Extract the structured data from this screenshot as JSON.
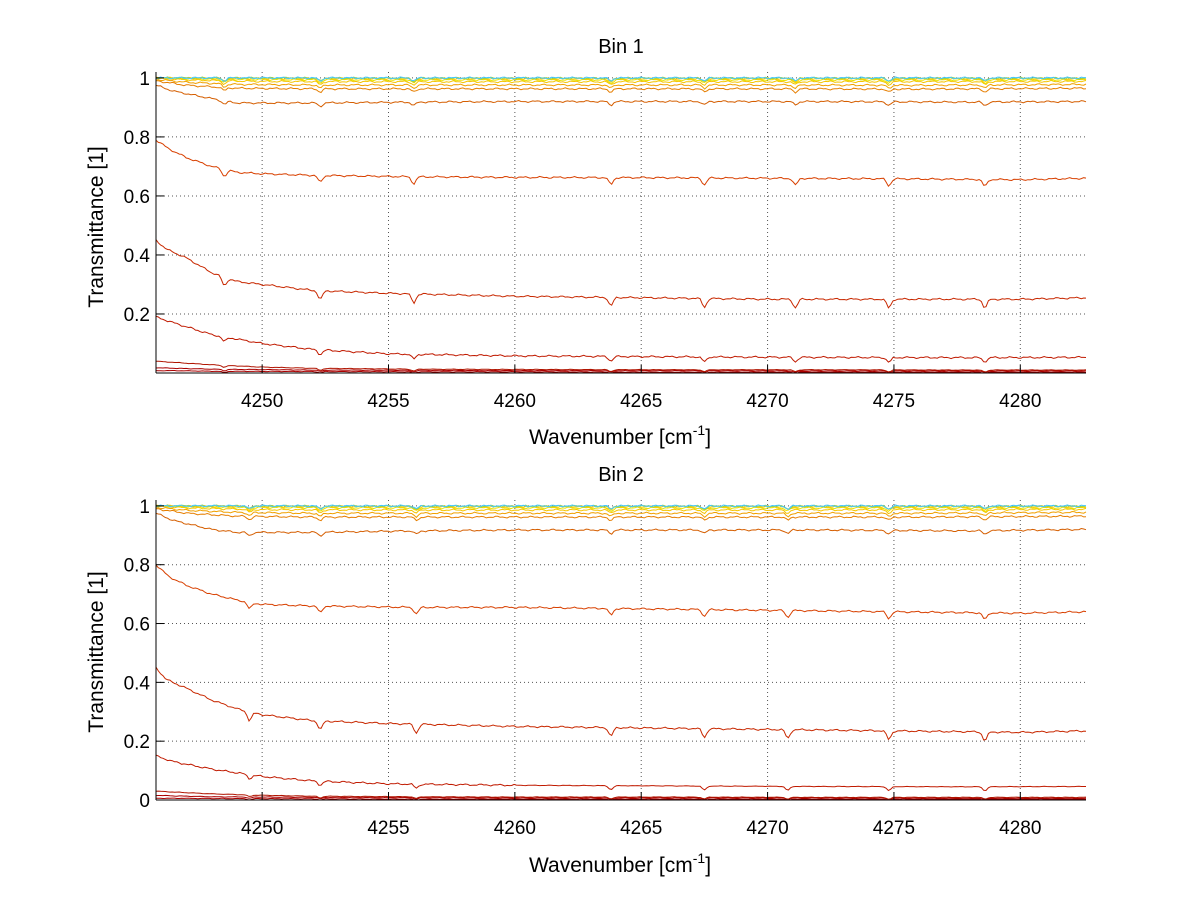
{
  "chart_data": [
    {
      "type": "line",
      "title": "Bin 1",
      "xlabel": "Wavenumber [cm",
      "xlabel_sup": "-1",
      "xlabel_close": "]",
      "ylabel": "Transmittance [1]",
      "xlim": [
        4245.8,
        4282.6
      ],
      "ylim": [
        0.0,
        1.02
      ],
      "xticks": [
        4250,
        4255,
        4260,
        4265,
        4270,
        4275,
        4280
      ],
      "xtick_labels": [
        "4250",
        "4255",
        "4260",
        "4265",
        "4270",
        "4275",
        "4280"
      ],
      "yticks": [
        0.2,
        0.4,
        0.6,
        0.8,
        1.0
      ],
      "ytick_labels": [
        "0.2",
        "0.4",
        "0.6",
        "0.8",
        "1"
      ],
      "grid": true,
      "colors": [
        "#aa0000",
        "#aa0000",
        "#b01400",
        "#c01a00",
        "#c82800",
        "#d84000",
        "#d55e00",
        "#e67e00",
        "#f0a000",
        "#f5c400",
        "#e8e000",
        "#ffcc00",
        "#9bd04a",
        "#44c8ff"
      ],
      "dips": [
        4248.5,
        4252.3,
        4256.0,
        4263.8,
        4267.5,
        4271.1,
        4274.8,
        4278.6
      ],
      "series": [
        {
          "values_x": [
            4245.8,
            4246.5,
            4248,
            4252,
            4256,
            4260,
            4266,
            4272,
            4278,
            4282.6
          ],
          "values": [
            0.008,
            0.008,
            0.006,
            0.005,
            0.004,
            0.004,
            0.003,
            0.003,
            0.003,
            0.003
          ]
        },
        {
          "values_x": [
            4245.8,
            4246.5,
            4248,
            4252,
            4256,
            4260,
            4266,
            4272,
            4278,
            4282.6
          ],
          "values": [
            0.018,
            0.016,
            0.013,
            0.01,
            0.009,
            0.008,
            0.008,
            0.007,
            0.007,
            0.007
          ]
        },
        {
          "values_x": [
            4245.8,
            4246.5,
            4248,
            4250,
            4252,
            4256,
            4260,
            4266,
            4272,
            4278,
            4282.6
          ],
          "values": [
            0.04,
            0.036,
            0.028,
            0.02,
            0.016,
            0.013,
            0.012,
            0.011,
            0.011,
            0.01,
            0.01
          ]
        },
        {
          "values_x": [
            4245.8,
            4246.5,
            4248,
            4250,
            4252,
            4255,
            4260,
            4266,
            4272,
            4278,
            4282.6
          ],
          "values": [
            0.19,
            0.17,
            0.13,
            0.1,
            0.08,
            0.065,
            0.058,
            0.055,
            0.053,
            0.052,
            0.053
          ]
        },
        {
          "values_x": [
            4245.8,
            4246.2,
            4247,
            4248,
            4249,
            4250,
            4252,
            4255,
            4260,
            4265,
            4270,
            4275,
            4280,
            4282.6
          ],
          "values": [
            0.45,
            0.42,
            0.39,
            0.34,
            0.31,
            0.3,
            0.28,
            0.27,
            0.26,
            0.255,
            0.25,
            0.25,
            0.25,
            0.255
          ]
        },
        {
          "values_x": [
            4245.8,
            4246.3,
            4247,
            4248,
            4249,
            4250,
            4252,
            4256,
            4260,
            4265,
            4270,
            4275,
            4280,
            4282.6
          ],
          "values": [
            0.79,
            0.76,
            0.73,
            0.7,
            0.68,
            0.675,
            0.67,
            0.665,
            0.663,
            0.662,
            0.66,
            0.658,
            0.655,
            0.66
          ]
        },
        {
          "values_x": [
            4245.8,
            4246.5,
            4248,
            4249,
            4252,
            4256,
            4260,
            4266,
            4272,
            4278,
            4282.6
          ],
          "values": [
            0.975,
            0.955,
            0.93,
            0.915,
            0.915,
            0.918,
            0.92,
            0.92,
            0.92,
            0.918,
            0.92
          ]
        },
        {
          "values_x": [
            4245.8,
            4247,
            4249,
            4252,
            4258,
            4264,
            4270,
            4276,
            4282.6
          ],
          "values": [
            0.99,
            0.975,
            0.965,
            0.963,
            0.963,
            0.963,
            0.963,
            0.962,
            0.965
          ]
        },
        {
          "values_x": [
            4245.8,
            4247,
            4249,
            4252,
            4258,
            4264,
            4270,
            4276,
            4282.6
          ],
          "values": [
            0.995,
            0.985,
            0.978,
            0.976,
            0.976,
            0.976,
            0.976,
            0.975,
            0.978
          ]
        },
        {
          "values_x": [
            4245.8,
            4247,
            4250,
            4256,
            4264,
            4272,
            4282.6
          ],
          "values": [
            1.0,
            0.993,
            0.988,
            0.987,
            0.987,
            0.987,
            0.988
          ]
        },
        {
          "values_x": [
            4245.8,
            4248,
            4256,
            4266,
            4282.6
          ],
          "values": [
            1.0,
            0.995,
            0.993,
            0.993,
            0.993
          ]
        },
        {
          "values_x": [
            4245.8,
            4248,
            4256,
            4266,
            4282.6
          ],
          "values": [
            1.0,
            0.998,
            0.997,
            0.997,
            0.997
          ]
        },
        {
          "values_x": [
            4245.8,
            4256,
            4270,
            4282.6
          ],
          "values": [
            1.0,
            0.999,
            0.999,
            0.999
          ]
        },
        {
          "values_x": [
            4245.8,
            4256,
            4270,
            4282.6
          ],
          "values": [
            1.0,
            1.0,
            1.0,
            1.0
          ]
        }
      ]
    },
    {
      "type": "line",
      "title": "Bin 2",
      "xlabel": "Wavenumber [cm",
      "xlabel_sup": "-1",
      "xlabel_close": "]",
      "ylabel": "Transmittance [1]",
      "xlim": [
        4245.8,
        4282.6
      ],
      "ylim": [
        0.0,
        1.02
      ],
      "xticks": [
        4250,
        4255,
        4260,
        4265,
        4270,
        4275,
        4280
      ],
      "xtick_labels": [
        "4250",
        "4255",
        "4260",
        "4265",
        "4270",
        "4275",
        "4280"
      ],
      "yticks": [
        0.0,
        0.2,
        0.4,
        0.6,
        0.8,
        1.0
      ],
      "ytick_labels": [
        "0",
        "0.2",
        "0.4",
        "0.6",
        "0.8",
        "1"
      ],
      "grid": true,
      "colors": [
        "#aa0000",
        "#aa0000",
        "#b01400",
        "#c01a00",
        "#c82800",
        "#d84000",
        "#d55e00",
        "#e67e00",
        "#f0a000",
        "#f5c400",
        "#e8e000",
        "#ffcc00",
        "#9bd04a",
        "#44c8ff"
      ],
      "dips": [
        4249.5,
        4252.3,
        4256.1,
        4263.8,
        4267.5,
        4270.8,
        4274.8,
        4278.6
      ],
      "series": [
        {
          "values_x": [
            4245.8,
            4246.5,
            4248,
            4252,
            4256,
            4260,
            4266,
            4272,
            4278,
            4282.6
          ],
          "values": [
            0.006,
            0.006,
            0.005,
            0.004,
            0.003,
            0.003,
            0.003,
            0.003,
            0.003,
            0.003
          ]
        },
        {
          "values_x": [
            4245.8,
            4246.5,
            4248,
            4252,
            4256,
            4260,
            4266,
            4272,
            4278,
            4282.6
          ],
          "values": [
            0.016,
            0.014,
            0.011,
            0.009,
            0.008,
            0.007,
            0.007,
            0.007,
            0.006,
            0.006
          ]
        },
        {
          "values_x": [
            4245.8,
            4246.5,
            4248,
            4250,
            4252,
            4256,
            4260,
            4266,
            4272,
            4278,
            4282.6
          ],
          "values": [
            0.03,
            0.027,
            0.021,
            0.016,
            0.013,
            0.011,
            0.01,
            0.01,
            0.009,
            0.009,
            0.009
          ]
        },
        {
          "values_x": [
            4245.8,
            4246.5,
            4248,
            4250,
            4252,
            4255,
            4260,
            4266,
            4272,
            4278,
            4282.6
          ],
          "values": [
            0.15,
            0.13,
            0.105,
            0.08,
            0.065,
            0.055,
            0.05,
            0.048,
            0.046,
            0.045,
            0.046
          ]
        },
        {
          "values_x": [
            4245.8,
            4246.2,
            4247,
            4248,
            4249,
            4250,
            4252,
            4255,
            4260,
            4265,
            4270,
            4275,
            4280,
            4282.6
          ],
          "values": [
            0.45,
            0.41,
            0.38,
            0.34,
            0.31,
            0.29,
            0.27,
            0.26,
            0.25,
            0.245,
            0.24,
            0.235,
            0.23,
            0.235
          ]
        },
        {
          "values_x": [
            4245.8,
            4246.3,
            4247,
            4248,
            4249,
            4250,
            4252,
            4256,
            4260,
            4265,
            4270,
            4275,
            4280,
            4282.6
          ],
          "values": [
            0.8,
            0.76,
            0.73,
            0.7,
            0.68,
            0.665,
            0.66,
            0.655,
            0.655,
            0.65,
            0.645,
            0.64,
            0.635,
            0.64
          ]
        },
        {
          "values_x": [
            4245.8,
            4246.5,
            4248,
            4249,
            4252,
            4256,
            4260,
            4266,
            4272,
            4278,
            4282.6
          ],
          "values": [
            0.975,
            0.95,
            0.92,
            0.91,
            0.91,
            0.915,
            0.918,
            0.918,
            0.918,
            0.915,
            0.92
          ]
        },
        {
          "values_x": [
            4245.8,
            4247,
            4249,
            4252,
            4258,
            4264,
            4270,
            4276,
            4282.6
          ],
          "values": [
            0.99,
            0.975,
            0.965,
            0.962,
            0.962,
            0.962,
            0.962,
            0.962,
            0.965
          ]
        },
        {
          "values_x": [
            4245.8,
            4247,
            4249,
            4252,
            4258,
            4264,
            4270,
            4276,
            4282.6
          ],
          "values": [
            0.995,
            0.985,
            0.978,
            0.975,
            0.975,
            0.975,
            0.975,
            0.975,
            0.978
          ]
        },
        {
          "values_x": [
            4245.8,
            4247,
            4250,
            4256,
            4264,
            4272,
            4282.6
          ],
          "values": [
            1.0,
            0.993,
            0.987,
            0.986,
            0.986,
            0.986,
            0.988
          ]
        },
        {
          "values_x": [
            4245.8,
            4248,
            4256,
            4266,
            4282.6
          ],
          "values": [
            1.0,
            0.995,
            0.993,
            0.993,
            0.993
          ]
        },
        {
          "values_x": [
            4245.8,
            4248,
            4256,
            4266,
            4282.6
          ],
          "values": [
            1.0,
            0.998,
            0.997,
            0.997,
            0.997
          ]
        },
        {
          "values_x": [
            4245.8,
            4256,
            4270,
            4282.6
          ],
          "values": [
            1.0,
            0.999,
            0.999,
            0.999
          ]
        },
        {
          "values_x": [
            4245.8,
            4256,
            4270,
            4282.6
          ],
          "values": [
            1.0,
            1.0,
            1.0,
            1.0
          ]
        }
      ]
    }
  ]
}
